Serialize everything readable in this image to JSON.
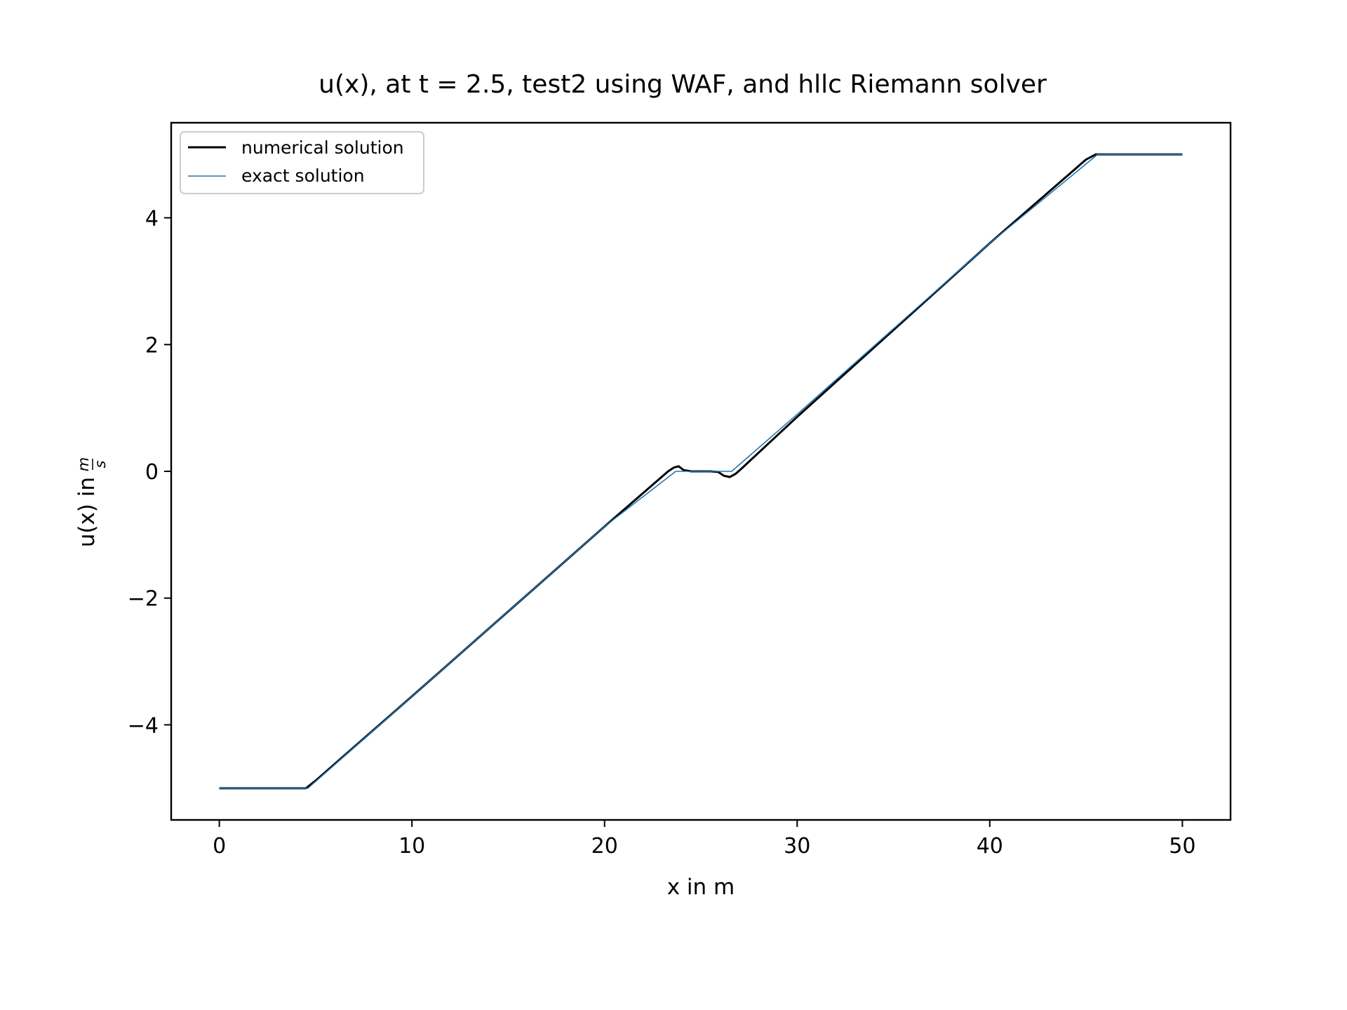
{
  "chart_data": {
    "type": "line",
    "title": "u(x), at t = 2.5, test2 using WAF, and hllc Riemann solver",
    "xlabel": "x in m",
    "ylabel_prefix": "u(x) in",
    "ylabel_unit_num": "m",
    "ylabel_unit_den": "s",
    "xlim": [
      -2.5,
      52.5
    ],
    "ylim": [
      -5.5,
      5.5
    ],
    "xticks": [
      0,
      10,
      20,
      30,
      40,
      50
    ],
    "yticks": [
      -4,
      -2,
      0,
      2,
      4
    ],
    "xtick_labels": [
      "0",
      "10",
      "20",
      "30",
      "40",
      "50"
    ],
    "ytick_labels": [
      "−4",
      "−2",
      "0",
      "2",
      "4"
    ],
    "grid": false,
    "legend_position": "top-left",
    "series": [
      {
        "name": "numerical solution",
        "color": "#000000",
        "x": [
          0,
          4.5,
          5.0,
          10,
          15,
          20,
          23.3,
          23.6,
          23.85,
          24.1,
          24.5,
          25.0,
          25.5,
          25.9,
          26.2,
          26.5,
          26.8,
          27.1,
          30,
          35,
          40,
          45,
          45.5,
          46.0,
          50
        ],
        "y": [
          -5.0,
          -5.0,
          -4.88,
          -3.55,
          -2.21,
          -0.87,
          0.0,
          0.06,
          0.08,
          0.02,
          0.0,
          0.0,
          0.0,
          -0.01,
          -0.07,
          -0.09,
          -0.04,
          0.04,
          0.86,
          2.23,
          3.6,
          4.92,
          5.0,
          5.0,
          5.0
        ]
      },
      {
        "name": "exact solution",
        "color": "#1f77b4",
        "x": [
          0,
          4.6,
          10,
          15,
          20,
          23.7,
          26.6,
          30,
          35,
          40,
          45.6,
          50
        ],
        "y": [
          -5.0,
          -5.0,
          -3.55,
          -2.21,
          -0.87,
          0.0,
          0.0,
          0.9,
          2.25,
          3.6,
          5.0,
          5.0
        ]
      }
    ]
  }
}
